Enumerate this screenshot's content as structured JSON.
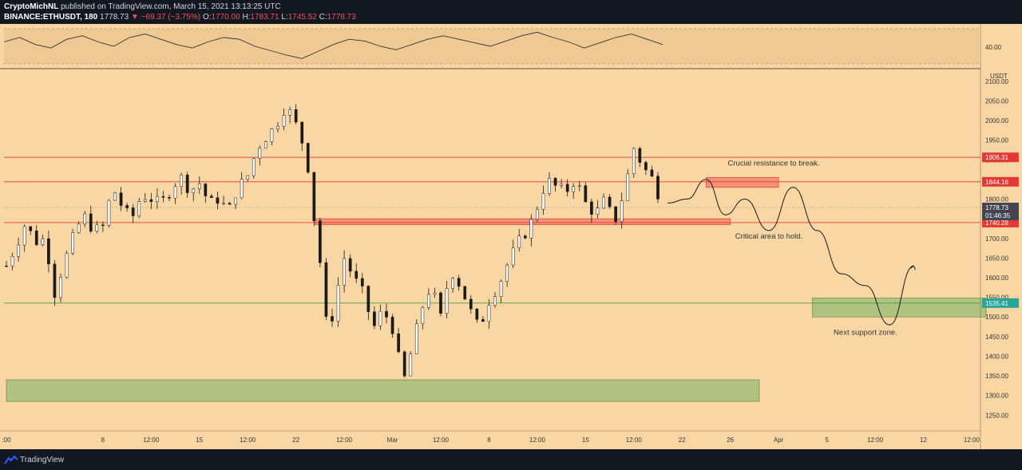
{
  "header": {
    "author": "CryptoMichNL",
    "published": "published on TradingView.com, March 15, 2021 13:13:25 UTC",
    "symbol": "BINANCE:ETHUSDT, 180",
    "last": "1778.73",
    "change": "−69.37 (−3.75%)",
    "o_label": "O:",
    "o": "1770.00",
    "h_label": "H:",
    "h": "1783.71",
    "l_label": "L:",
    "l": "1745.52",
    "c_label": "C:",
    "c": "1778.73"
  },
  "footer": {
    "brand": "TradingView"
  },
  "colors": {
    "background": "#f9d7a4",
    "frame": "#131722",
    "candle": "#1a1a1a",
    "resistance_line": "#e53935",
    "resistance_zone": "#f28b72",
    "support_line": "#43a047",
    "support_zone": "#a9c07e",
    "price_tag": "#434651",
    "support_tag": "#26a69a"
  },
  "chart_data": {
    "type": "candlestick",
    "symbol": "ETHUSDT",
    "exchange": "BINANCE",
    "interval": "180",
    "price_unit": "USDT",
    "ylim": [
      1210,
      2120
    ],
    "y_ticks": [
      1250,
      1300,
      1350,
      1400,
      1450,
      1500,
      1550,
      1600,
      1650,
      1700,
      1750,
      1800,
      1850,
      1900,
      1950,
      2000,
      2050,
      2100
    ],
    "y_tick_labels": [
      "1250.00",
      "1300.00",
      "1350.00",
      "1400.00",
      "1450.00",
      "1500.00",
      "1550.00",
      "1600.00",
      "1650.00",
      "1700.00",
      "1750.00",
      "1800.00",
      "1850.00",
      "1900.00",
      "1950.00",
      "2000.00",
      "2050.00",
      "2100.00"
    ],
    "x_ticks": [
      {
        "label": ":00",
        "day": 0
      },
      {
        "label": "8",
        "day": 2
      },
      {
        "label": "12:00",
        "day": 3
      },
      {
        "label": "15",
        "day": 4
      },
      {
        "label": "12:00",
        "day": 5
      },
      {
        "label": "22",
        "day": 6
      },
      {
        "label": "12:00",
        "day": 7
      },
      {
        "label": "Mar",
        "day": 8
      },
      {
        "label": "12:00",
        "day": 9
      },
      {
        "label": "8",
        "day": 10
      },
      {
        "label": "12:00",
        "day": 11
      },
      {
        "label": "15",
        "day": 12
      },
      {
        "label": "12:00",
        "day": 13
      },
      {
        "label": "22",
        "day": 14
      },
      {
        "label": "26",
        "day": 15
      },
      {
        "label": "Apr",
        "day": 16
      },
      {
        "label": "5",
        "day": 17
      },
      {
        "label": "12:00",
        "day": 18
      },
      {
        "label": "12",
        "day": 19
      },
      {
        "label": "12:00",
        "day": 20
      }
    ],
    "close_path": [
      [
        0,
        1630
      ],
      [
        0.2,
        1680
      ],
      [
        0.4,
        1740
      ],
      [
        0.6,
        1690
      ],
      [
        0.8,
        1700
      ],
      [
        1,
        1560
      ],
      [
        1.2,
        1640
      ],
      [
        1.4,
        1710
      ],
      [
        1.6,
        1760
      ],
      [
        1.8,
        1720
      ],
      [
        2,
        1730
      ],
      [
        2.2,
        1830
      ],
      [
        2.4,
        1780
      ],
      [
        2.6,
        1750
      ],
      [
        2.8,
        1810
      ],
      [
        3,
        1800
      ],
      [
        3.2,
        1790
      ],
      [
        3.4,
        1820
      ],
      [
        3.6,
        1860
      ],
      [
        3.8,
        1820
      ],
      [
        4,
        1840
      ],
      [
        4.2,
        1790
      ],
      [
        4.4,
        1800
      ],
      [
        4.6,
        1770
      ],
      [
        4.8,
        1830
      ],
      [
        5,
        1860
      ],
      [
        5.2,
        1930
      ],
      [
        5.4,
        1960
      ],
      [
        5.6,
        1990
      ],
      [
        5.8,
        2040
      ],
      [
        6,
        1990
      ],
      [
        6.2,
        1920
      ],
      [
        6.3,
        1840
      ],
      [
        6.4,
        1720
      ],
      [
        6.5,
        1640
      ],
      [
        6.6,
        1500
      ],
      [
        6.7,
        1460
      ],
      [
        6.8,
        1540
      ],
      [
        7,
        1650
      ],
      [
        7.2,
        1600
      ],
      [
        7.4,
        1560
      ],
      [
        7.6,
        1470
      ],
      [
        7.8,
        1520
      ],
      [
        8,
        1470
      ],
      [
        8.1,
        1420
      ],
      [
        8.2,
        1330
      ],
      [
        8.3,
        1360
      ],
      [
        8.4,
        1420
      ],
      [
        8.6,
        1520
      ],
      [
        8.8,
        1580
      ],
      [
        9,
        1500
      ],
      [
        9.2,
        1620
      ],
      [
        9.4,
        1580
      ],
      [
        9.6,
        1520
      ],
      [
        9.8,
        1470
      ],
      [
        10,
        1540
      ],
      [
        10.2,
        1580
      ],
      [
        10.4,
        1640
      ],
      [
        10.6,
        1690
      ],
      [
        10.8,
        1720
      ],
      [
        11,
        1780
      ],
      [
        11.2,
        1850
      ],
      [
        11.4,
        1830
      ],
      [
        11.6,
        1820
      ],
      [
        11.8,
        1850
      ],
      [
        12,
        1790
      ],
      [
        12.2,
        1760
      ],
      [
        12.4,
        1800
      ],
      [
        12.6,
        1740
      ],
      [
        12.8,
        1820
      ],
      [
        13,
        1930
      ],
      [
        13.2,
        1880
      ],
      [
        13.4,
        1850
      ],
      [
        13.6,
        1778.73
      ]
    ],
    "oscillator": {
      "level_label": "40.00",
      "values": [
        55,
        60,
        52,
        48,
        58,
        62,
        55,
        50,
        60,
        64,
        58,
        52,
        48,
        55,
        60,
        58,
        50,
        45,
        40,
        36,
        44,
        52,
        58,
        56,
        50,
        46,
        52,
        58,
        62,
        58,
        54,
        50,
        56,
        62,
        66,
        60,
        55,
        48,
        54,
        60,
        64,
        58,
        52
      ]
    },
    "annotations": [
      {
        "text": "Crucial resistance to break."
      },
      {
        "text": "Critical area to hold."
      },
      {
        "text": "Next support zone."
      }
    ],
    "levels": [
      {
        "price": 1906.31,
        "label": "1906.31",
        "kind": "resistance"
      },
      {
        "price": 1844.16,
        "label": "1844.16",
        "kind": "resistance"
      },
      {
        "price": 1740.28,
        "label": "1740.28",
        "kind": "resistance"
      },
      {
        "price": 1535.41,
        "label": "1535.41",
        "kind": "support"
      }
    ],
    "current_price": {
      "price": 1778.73,
      "label": "1778.73",
      "countdown": "01:46:35"
    },
    "zones": [
      {
        "kind": "resistance",
        "y_range": [
          1735,
          1750
        ],
        "day_range": [
          6.4,
          15
        ]
      },
      {
        "kind": "resistance",
        "y_range": [
          1830,
          1855
        ],
        "day_range": [
          14.5,
          16
        ]
      },
      {
        "kind": "support",
        "y_range": [
          1500,
          1548
        ],
        "day_range": [
          16.7,
          20.3
        ]
      },
      {
        "kind": "support",
        "y_range": [
          1285,
          1340
        ],
        "day_range": [
          0,
          15.6
        ]
      }
    ],
    "projection": [
      [
        13.7,
        1790
      ],
      [
        14.1,
        1800
      ],
      [
        14.5,
        1850
      ],
      [
        14.9,
        1760
      ],
      [
        15.3,
        1800
      ],
      [
        15.8,
        1720
      ],
      [
        16.3,
        1830
      ],
      [
        16.8,
        1720
      ],
      [
        17.3,
        1610
      ],
      [
        17.8,
        1580
      ],
      [
        18.3,
        1480
      ],
      [
        18.8,
        1630
      ]
    ]
  }
}
